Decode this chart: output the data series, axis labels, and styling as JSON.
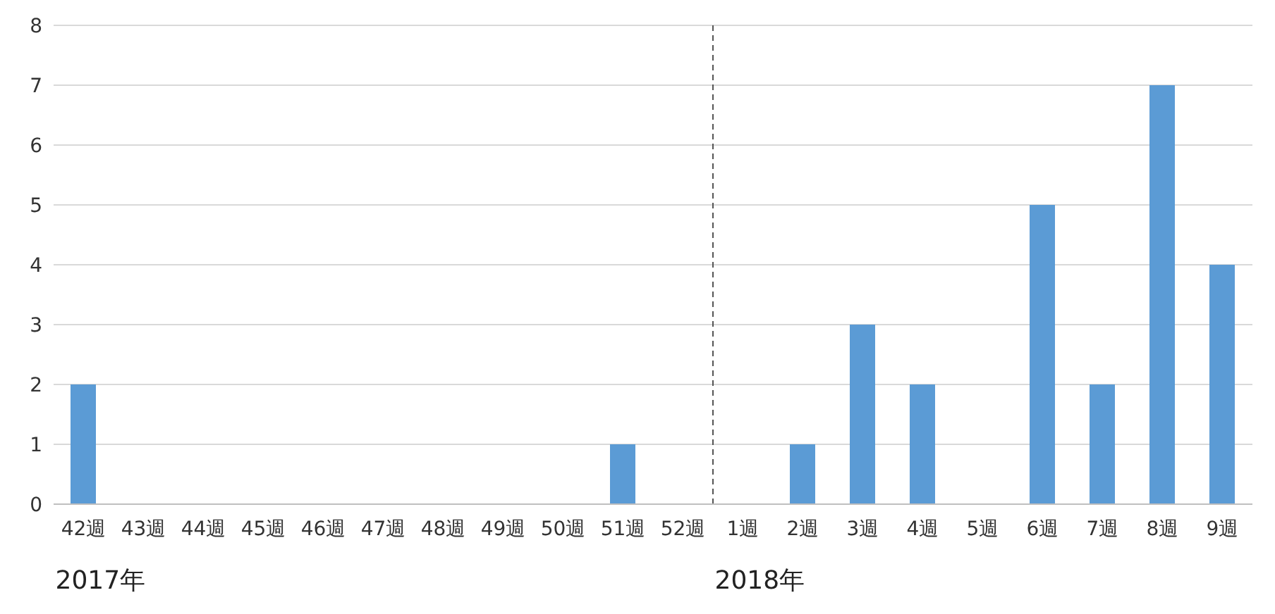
{
  "chart_data": {
    "type": "bar",
    "categories": [
      "42週",
      "43週",
      "44週",
      "45週",
      "46週",
      "47週",
      "48週",
      "49週",
      "50週",
      "51週",
      "52週",
      "1週",
      "2週",
      "3週",
      "4週",
      "5週",
      "6週",
      "7週",
      "8週",
      "9週"
    ],
    "values": [
      2,
      0,
      0,
      0,
      0,
      0,
      0,
      0,
      0,
      1,
      0,
      0,
      1,
      3,
      2,
      0,
      5,
      2,
      7,
      4
    ],
    "color": "#5b9bd5",
    "ylim": [
      0,
      8
    ],
    "yticks": [
      0,
      1,
      2,
      3,
      4,
      5,
      6,
      7,
      8
    ],
    "grid": "y",
    "ref_lines": [
      {
        "axis": "x",
        "value": "1週",
        "label": null,
        "color": "#555555",
        "line_style": "dashed"
      }
    ],
    "annotations": [
      "2017年",
      "2018年"
    ]
  }
}
